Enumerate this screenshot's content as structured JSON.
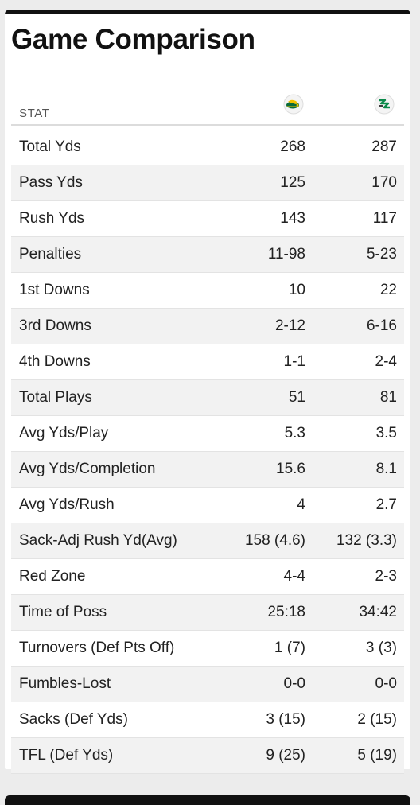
{
  "title": "Game Comparison",
  "table": {
    "stat_header": "STAT",
    "teams": [
      {
        "logo_icon": "bison-logo-icon",
        "color": "#0a6b3a"
      },
      {
        "logo_icon": "nd-logo-icon",
        "color": "#0a8a4a"
      }
    ],
    "rows": [
      {
        "label": "Total Yds",
        "v1": "268",
        "v2": "287"
      },
      {
        "label": "Pass Yds",
        "v1": "125",
        "v2": "170"
      },
      {
        "label": "Rush Yds",
        "v1": "143",
        "v2": "117"
      },
      {
        "label": "Penalties",
        "v1": "11-98",
        "v2": "5-23"
      },
      {
        "label": "1st Downs",
        "v1": "10",
        "v2": "22"
      },
      {
        "label": "3rd Downs",
        "v1": "2-12",
        "v2": "6-16"
      },
      {
        "label": "4th Downs",
        "v1": "1-1",
        "v2": "2-4"
      },
      {
        "label": "Total Plays",
        "v1": "51",
        "v2": "81"
      },
      {
        "label": "Avg Yds/Play",
        "v1": "5.3",
        "v2": "3.5"
      },
      {
        "label": "Avg Yds/Completion",
        "v1": "15.6",
        "v2": "8.1"
      },
      {
        "label": "Avg Yds/Rush",
        "v1": "4",
        "v2": "2.7"
      },
      {
        "label": "Sack-Adj Rush Yd(Avg)",
        "v1": "158 (4.6)",
        "v2": "132 (3.3)"
      },
      {
        "label": "Red Zone",
        "v1": "4-4",
        "v2": "2-3"
      },
      {
        "label": "Time of Poss",
        "v1": "25:18",
        "v2": "34:42"
      },
      {
        "label": "Turnovers (Def Pts Off)",
        "v1": "1 (7)",
        "v2": "3 (3)"
      },
      {
        "label": "Fumbles-Lost",
        "v1": "0-0",
        "v2": "0-0"
      },
      {
        "label": "Sacks (Def Yds)",
        "v1": "3 (15)",
        "v2": "2 (15)"
      },
      {
        "label": "TFL (Def Yds)",
        "v1": "9 (25)",
        "v2": "5 (19)"
      }
    ]
  }
}
